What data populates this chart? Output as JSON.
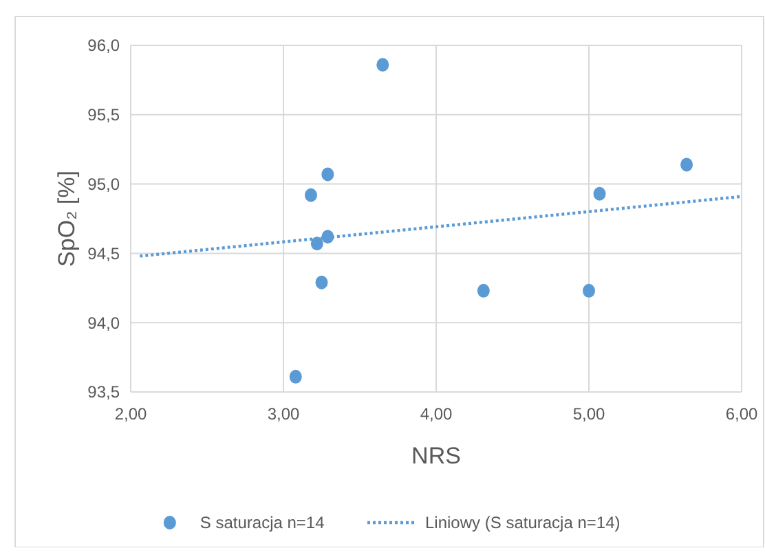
{
  "chart_data": {
    "type": "scatter",
    "xlabel": "NRS",
    "ylabel": "SpO₂ [%]",
    "xlim": [
      2,
      6
    ],
    "ylim": [
      93.5,
      96
    ],
    "xticks": [
      {
        "value": 2,
        "label": "2,00"
      },
      {
        "value": 3,
        "label": "3,00"
      },
      {
        "value": 4,
        "label": "4,00"
      },
      {
        "value": 5,
        "label": "5,00"
      },
      {
        "value": 6,
        "label": "6,00"
      }
    ],
    "yticks": [
      {
        "value": 93.5,
        "label": "93,5"
      },
      {
        "value": 94,
        "label": "94,0"
      },
      {
        "value": 94.5,
        "label": "94,5"
      },
      {
        "value": 95,
        "label": "95,0"
      },
      {
        "value": 95.5,
        "label": "95,5"
      },
      {
        "value": 96,
        "label": "96,0"
      }
    ],
    "grid": true,
    "legend": "bottom",
    "series": [
      {
        "name": "S saturacja n=14",
        "type": "scatter",
        "marker": "circle",
        "color": "#5b9bd5",
        "x": [
          3.65,
          3.29,
          3.18,
          3.29,
          3.22,
          3.25,
          3.08,
          4.31,
          5.0,
          5.07,
          5.64
        ],
        "values": [
          95.86,
          95.07,
          94.92,
          94.62,
          94.57,
          94.29,
          93.61,
          94.23,
          94.23,
          94.93,
          95.14
        ]
      },
      {
        "name": "Liniowy (S saturacja n=14)",
        "type": "line",
        "marker": "none",
        "line_style": "dotted",
        "color": "#5b9bd5",
        "x": [
          2.06,
          6.0
        ],
        "values": [
          94.48,
          94.91
        ]
      }
    ]
  }
}
